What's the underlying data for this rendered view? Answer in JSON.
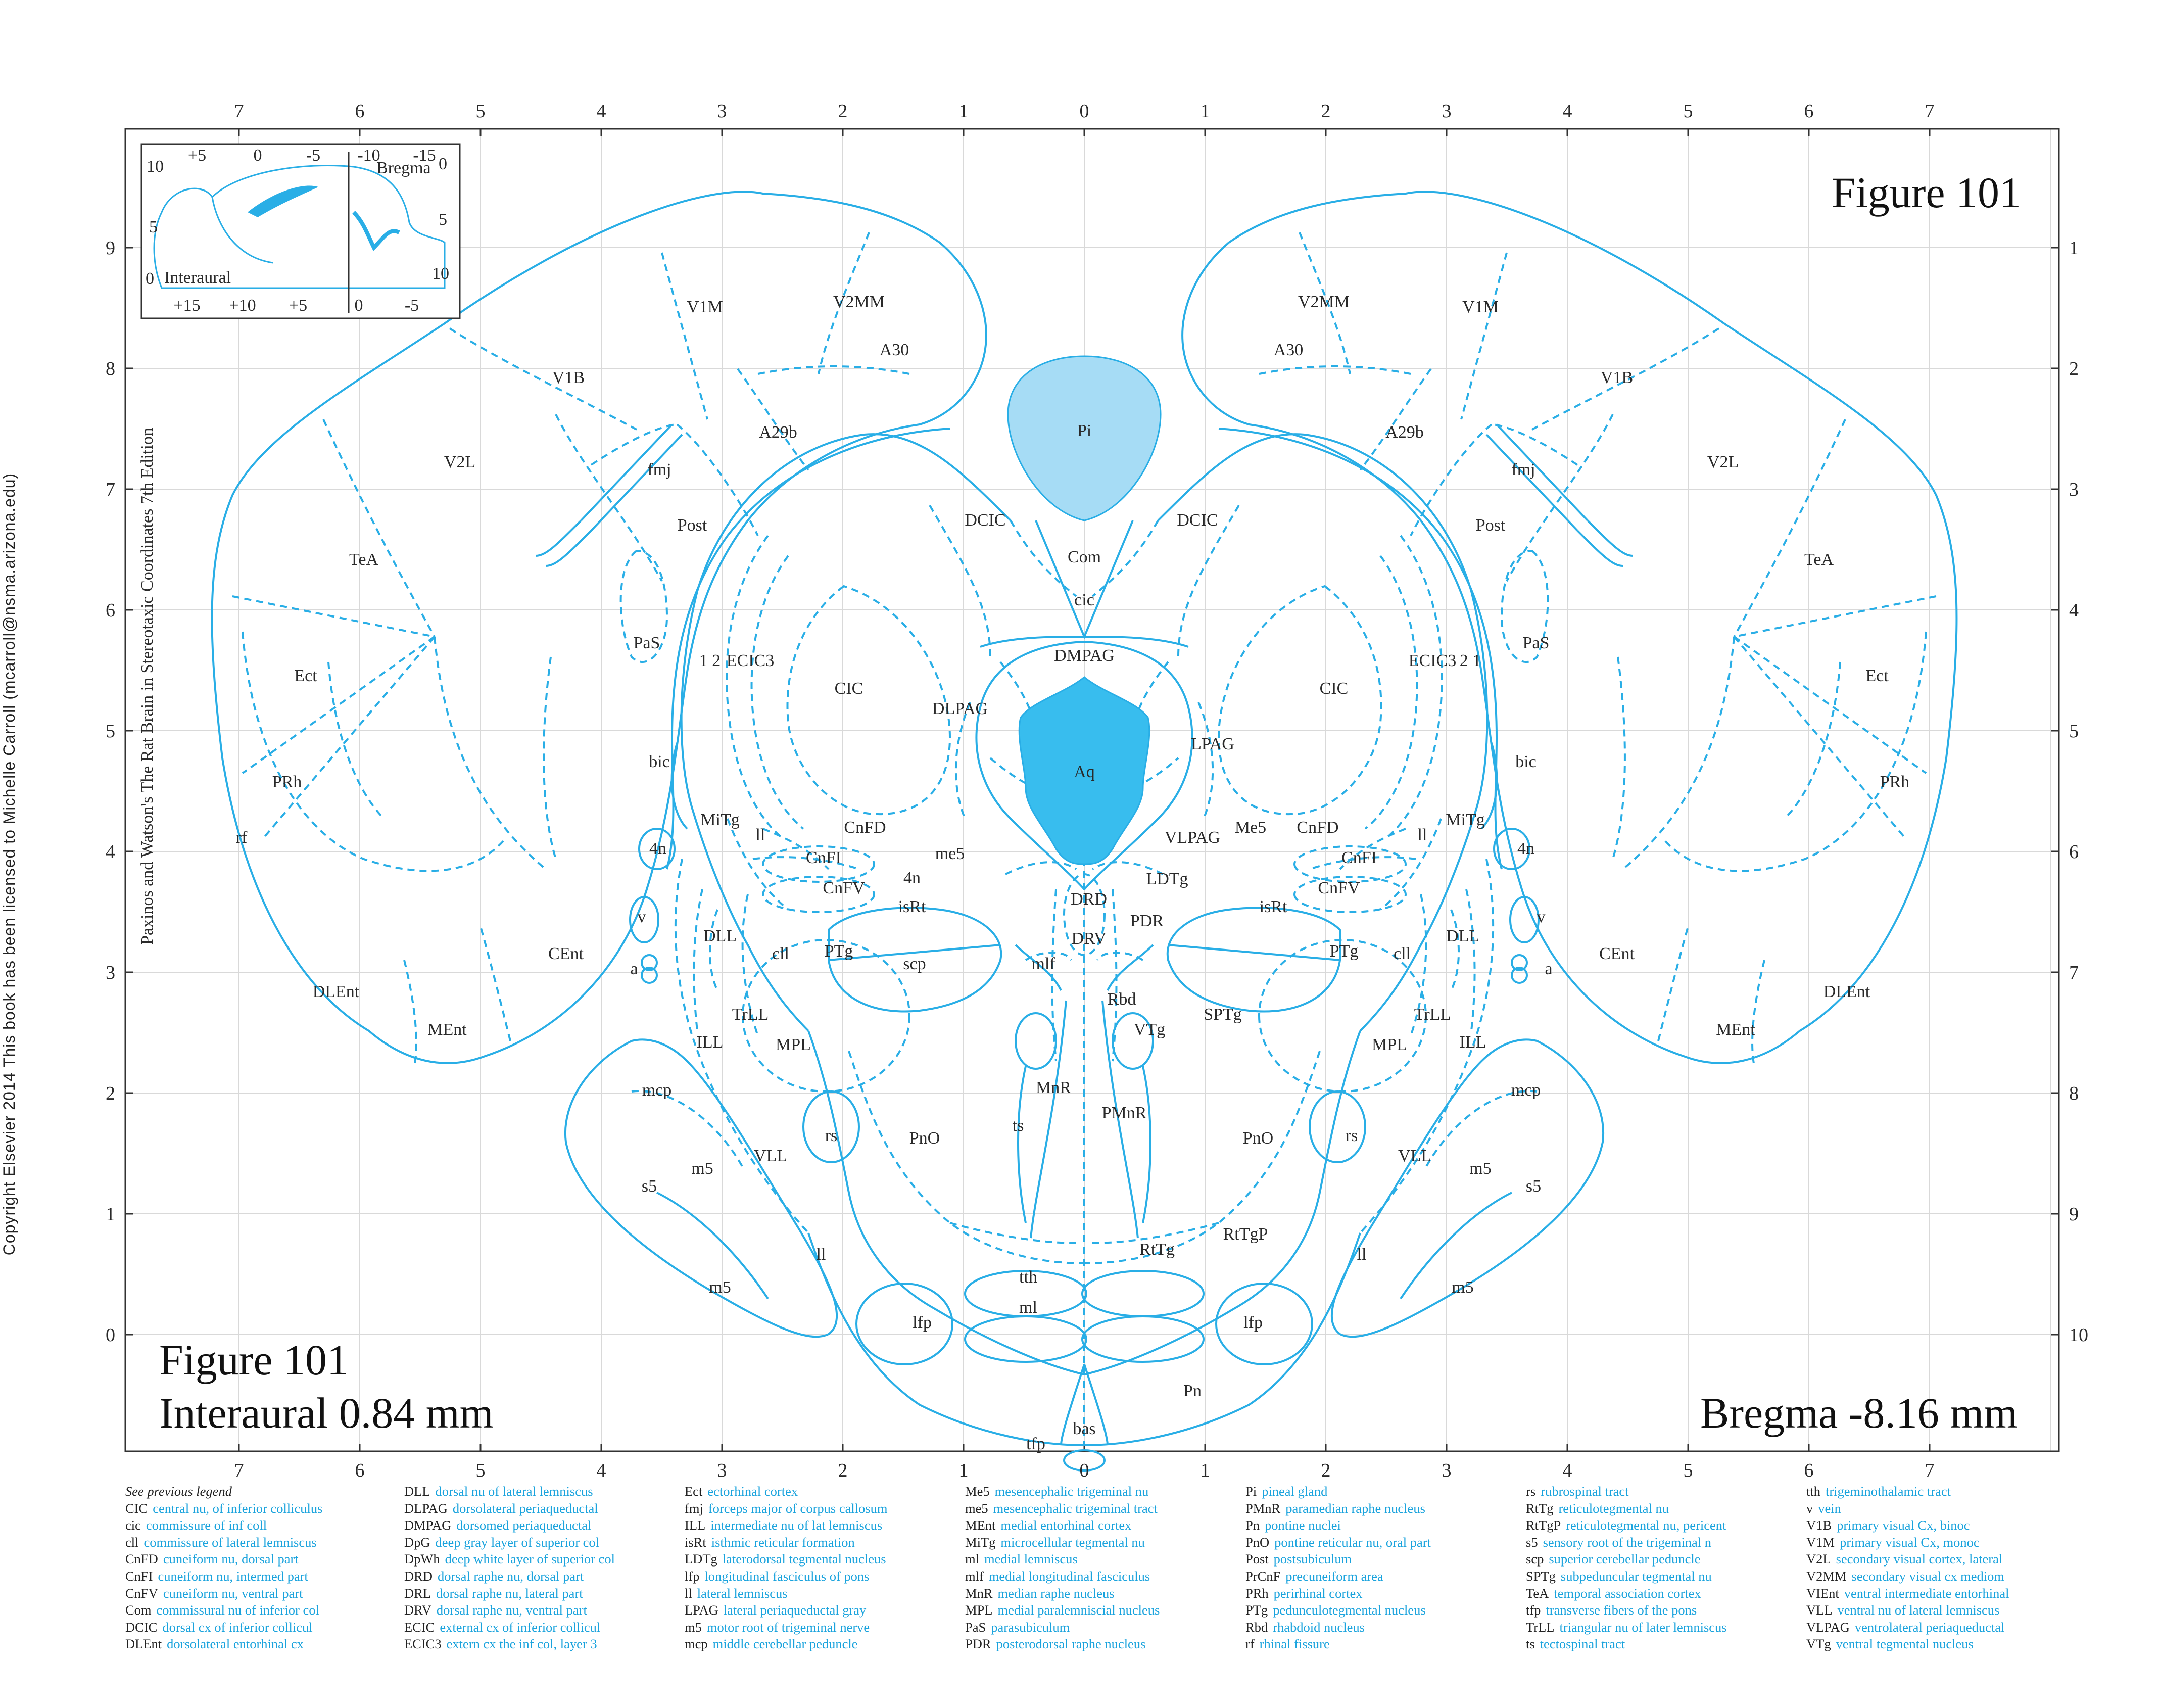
{
  "copyright": "Copyright Elsevier 2014 This book has been licensed to Michelle Carroll (mcarroll@nsma.arizona.edu)",
  "figure_title_top": "Figure 101",
  "figure_title_bottom": "Figure 101",
  "interaural": "Interaural 0.84 mm",
  "bregma": "Bregma -8.16 mm",
  "edition_note": "Paxinos and Watson's The Rat Brain in Stereotaxic Coordinates     7th Edition",
  "colors": {
    "line": "#29aee6",
    "light_fill": "#a6dcf5",
    "dark_fill": "#38bdee",
    "grid": "#d9d9d9"
  },
  "axes": {
    "top": [
      "7",
      "6",
      "5",
      "4",
      "3",
      "2",
      "1",
      "0",
      "1",
      "2",
      "3",
      "4",
      "5",
      "6",
      "7"
    ],
    "bottom": [
      "7",
      "6",
      "5",
      "4",
      "3",
      "2",
      "1",
      "0",
      "1",
      "2",
      "3",
      "4",
      "5",
      "6",
      "7"
    ],
    "left": [
      "9",
      "8",
      "7",
      "6",
      "5",
      "4",
      "3",
      "2",
      "1",
      "0"
    ],
    "right": [
      "1",
      "2",
      "3",
      "4",
      "5",
      "6",
      "7",
      "8",
      "9",
      "10"
    ]
  },
  "inset": {
    "top_ticks": [
      "+5",
      "0",
      "-5",
      "-10",
      "-15"
    ],
    "bottom_ticks": [
      "+15",
      "+10",
      "+5",
      "0",
      "-5"
    ],
    "left_ticks": [
      "10",
      "5",
      "0"
    ],
    "right_ticks": [
      "0",
      "5",
      "10"
    ],
    "bregma_label": "Bregma",
    "interaural_label": "Interaural"
  },
  "regions": {
    "V1M_l": "V1M",
    "V2MM_l": "V2MM",
    "A30_l": "A30",
    "V1B_l": "V1B",
    "A29b_l": "A29b",
    "V2L_l": "V2L",
    "fmj_l": "fmj",
    "Post_l": "Post",
    "TeA_l": "TeA",
    "PaS_l": "PaS",
    "Ect_l": "Ect",
    "n12_l": "1 2",
    "ECIC3_l": "ECIC3",
    "CIC_l": "CIC",
    "bic_l": "bic",
    "PRh_l": "PRh",
    "rf_l": "rf",
    "MiTg_l": "MiTg",
    "ll_l": "ll",
    "CnFD_l": "CnFD",
    "n4_l": "4n",
    "me5_l": "me5",
    "CnFI_l": "CnFI",
    "CnFV_l": "CnFV",
    "isRt_l": "isRt",
    "v_l": "v",
    "DLL_l": "DLL",
    "cll_l": "cll",
    "PTg_l": "PTg",
    "scp_l": "scp",
    "CEnt_l": "CEnt",
    "a_l": "a",
    "DLEnt_l": "DLEnt",
    "TrLL_l": "TrLL",
    "ILL_l": "ILL",
    "MPL_l": "MPL",
    "MEnt_l": "MEnt",
    "mcp_l": "mcp",
    "rs_l": "rs",
    "PnO_l": "PnO",
    "VLL_l": "VLL",
    "m5a_l": "m5",
    "s5_l": "s5",
    "ll2_l": "ll",
    "m5b_l": "m5",
    "lfp_l": "lfp",
    "V1M_r": "V1M",
    "V2MM_r": "V2MM",
    "A30_r": "A30",
    "V1B_r": "V1B",
    "A29b_r": "A29b",
    "V2L_r": "V2L",
    "fmj_r": "fmj",
    "Post_r": "Post",
    "TeA_r": "TeA",
    "PaS_r": "PaS",
    "Ect_r": "Ect",
    "n21_r": "2 1",
    "ECIC3_r": "ECIC3",
    "CIC_r": "CIC",
    "bic_r": "bic",
    "PRh_r": "PRh",
    "MiTg_r": "MiTg",
    "ll_r": "ll",
    "CnFD_r": "CnFD",
    "n4_r": "4n",
    "Me5_r": "Me5",
    "CnFI_r": "CnFI",
    "CnFV_r": "CnFV",
    "isRt_r": "isRt",
    "v_r": "v",
    "DLL_r": "DLL",
    "cll_r": "cll",
    "PTg_r": "PTg",
    "CEnt_r": "CEnt",
    "a_r": "a",
    "DLEnt_r": "DLEnt",
    "TrLL_r": "TrLL",
    "ILL_r": "ILL",
    "MPL_r": "MPL",
    "MEnt_r": "MEnt",
    "mcp_r": "mcp",
    "rs_r": "rs",
    "PnO_r": "PnO",
    "VLL_r": "VLL",
    "m5a_r": "m5",
    "s5_r": "s5",
    "ll2_r": "ll",
    "m5b_r": "m5",
    "lfp_r": "lfp",
    "SPTg_r": "SPTg",
    "VTg_r": "VTg",
    "RtTgP_r": "RtTgP",
    "RtTg_r": "RtTg",
    "Pi": "Pi",
    "DCIC_l": "DCIC",
    "DCIC_r": "DCIC",
    "Com": "Com",
    "cic": "cic",
    "DMPAG": "DMPAG",
    "DLPAG": "DLPAG",
    "LPAG": "LPAG",
    "Aq": "Aq",
    "VLPAG": "VLPAG",
    "n4m": "4n",
    "LDTg": "LDTg",
    "DRD": "DRD",
    "PDR": "PDR",
    "DRV": "DRV",
    "mlf": "mlf",
    "Rbd": "Rbd",
    "MnR": "MnR",
    "ts": "ts",
    "PMnR": "PMnR",
    "tth": "tth",
    "ml": "ml",
    "Pn": "Pn",
    "bas": "bas",
    "tfp": "tfp"
  },
  "legend": [
    {
      "heading": "See previous legend",
      "rows": [
        [
          "CIC",
          "central nu, of inferior colliculus"
        ],
        [
          "cic",
          "commissure of inf coll"
        ],
        [
          "cll",
          "commissure of lateral lemniscus"
        ],
        [
          "CnFD",
          "cuneiform nu, dorsal part"
        ],
        [
          "CnFI",
          "cuneiform nu, intermed part"
        ],
        [
          "CnFV",
          "cuneiform nu, ventral part"
        ],
        [
          "Com",
          "commissural nu of inferior col"
        ],
        [
          "DCIC",
          "dorsal cx of inferior collicul"
        ],
        [
          "DLEnt",
          "dorsolateral entorhinal cx"
        ]
      ]
    },
    {
      "heading": "",
      "rows": [
        [
          "DLL",
          "dorsal nu of lateral lemniscus"
        ],
        [
          "DLPAG",
          "dorsolateral periaqueductal"
        ],
        [
          "DMPAG",
          "dorsomed periaqueductal"
        ],
        [
          "DpG",
          "deep gray layer of superior col"
        ],
        [
          "DpWh",
          "deep white layer of superior col"
        ],
        [
          "DRD",
          "dorsal raphe nu, dorsal part"
        ],
        [
          "DRL",
          "dorsal raphe nu, lateral part"
        ],
        [
          "DRV",
          "dorsal raphe nu, ventral part"
        ],
        [
          "ECIC",
          "external cx of inferior collicul"
        ],
        [
          "ECIC3",
          "extern cx the inf col, layer 3"
        ]
      ]
    },
    {
      "heading": "",
      "rows": [
        [
          "Ect",
          "ectorhinal cortex"
        ],
        [
          "fmj",
          "forceps major of corpus callosum"
        ],
        [
          "ILL",
          "intermediate nu of lat lemniscus"
        ],
        [
          "isRt",
          "isthmic reticular formation"
        ],
        [
          "LDTg",
          "laterodorsal tegmental nucleus"
        ],
        [
          "lfp",
          "longitudinal fasciculus of pons"
        ],
        [
          "ll",
          "lateral lemniscus"
        ],
        [
          "LPAG",
          "lateral periaqueductal gray"
        ],
        [
          "m5",
          "motor root of trigeminal nerve"
        ],
        [
          "mcp",
          "middle cerebellar peduncle"
        ]
      ]
    },
    {
      "heading": "",
      "rows": [
        [
          "Me5",
          "mesencephalic trigeminal nu"
        ],
        [
          "me5",
          "mesencephalic trigeminal tract"
        ],
        [
          "MEnt",
          "medial entorhinal cortex"
        ],
        [
          "MiTg",
          "microcellular tegmental nu"
        ],
        [
          "ml",
          "medial lemniscus"
        ],
        [
          "mlf",
          "medial longitudinal fasciculus"
        ],
        [
          "MnR",
          "median raphe nucleus"
        ],
        [
          "MPL",
          "medial paralemniscial nucleus"
        ],
        [
          "PaS",
          "parasubiculum"
        ],
        [
          "PDR",
          "posterodorsal raphe nucleus"
        ]
      ]
    },
    {
      "heading": "",
      "rows": [
        [
          "Pi",
          "pineal gland"
        ],
        [
          "PMnR",
          "paramedian raphe nucleus"
        ],
        [
          "Pn",
          "pontine nuclei"
        ],
        [
          "PnO",
          "pontine reticular nu, oral part"
        ],
        [
          "Post",
          "postsubiculum"
        ],
        [
          "PrCnF",
          "precuneiform area"
        ],
        [
          "PRh",
          "perirhinal cortex"
        ],
        [
          "PTg",
          "pedunculotegmental nucleus"
        ],
        [
          "Rbd",
          "rhabdoid nucleus"
        ],
        [
          "rf",
          "rhinal fissure"
        ]
      ]
    },
    {
      "heading": "",
      "rows": [
        [
          "rs",
          "rubrospinal tract"
        ],
        [
          "RtTg",
          "reticulotegmental nu"
        ],
        [
          "RtTgP",
          "reticulotegmental nu, pericent"
        ],
        [
          "s5",
          "sensory root of the trigeminal n"
        ],
        [
          "scp",
          "superior cerebellar peduncle"
        ],
        [
          "SPTg",
          "subpeduncular tegmental nu"
        ],
        [
          "TeA",
          "temporal association cortex"
        ],
        [
          "tfp",
          "transverse fibers of the pons"
        ],
        [
          "TrLL",
          "triangular nu of later lemniscus"
        ],
        [
          "ts",
          "tectospinal tract"
        ]
      ]
    },
    {
      "heading": "",
      "rows": [
        [
          "tth",
          "trigeminothalamic tract"
        ],
        [
          "v",
          "vein"
        ],
        [
          "V1B",
          "primary visual Cx, binoc"
        ],
        [
          "V1M",
          "primary visual Cx, monoc"
        ],
        [
          "V2L",
          "secondary visual cortex, lateral"
        ],
        [
          "V2MM",
          "secondary visual cx mediom"
        ],
        [
          "VIEnt",
          "ventral intermediate entorhinal"
        ],
        [
          "VLL",
          "ventral nu of lateral lemniscus"
        ],
        [
          "VLPAG",
          "ventrolateral periaqueductal"
        ],
        [
          "VTg",
          "ventral tegmental nucleus"
        ]
      ]
    }
  ]
}
